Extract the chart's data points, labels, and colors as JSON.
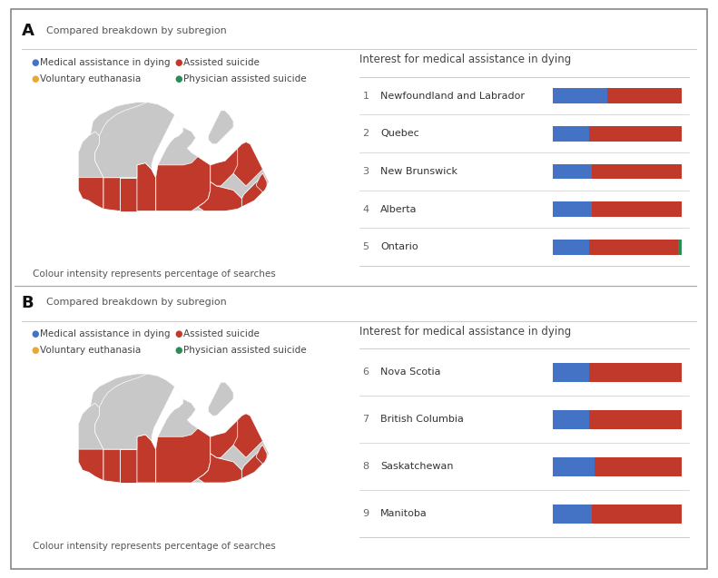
{
  "panel_A_label": "A",
  "panel_B_label": "B",
  "subregion_text": "Compared breakdown by subregion",
  "legend_items": [
    {
      "label": "Medical assistance in dying",
      "color": "#4472C4"
    },
    {
      "label": "Assisted suicide",
      "color": "#C0392B"
    },
    {
      "label": "Voluntary euthanasia",
      "color": "#E8A838"
    },
    {
      "label": "Physician assisted suicide",
      "color": "#2E8B57"
    }
  ],
  "interest_title": "Interest for medical assistance in dying",
  "colour_note": "Colour intensity represents percentage of searches",
  "panel_A_bars": [
    {
      "rank": 1,
      "label": "Newfoundland and Labrador",
      "blue": 42,
      "red": 58,
      "green": 0
    },
    {
      "rank": 2,
      "label": "Quebec",
      "blue": 28,
      "red": 72,
      "green": 0
    },
    {
      "rank": 3,
      "label": "New Brunswick",
      "blue": 30,
      "red": 70,
      "green": 0
    },
    {
      "rank": 4,
      "label": "Alberta",
      "blue": 30,
      "red": 70,
      "green": 0
    },
    {
      "rank": 5,
      "label": "Ontario",
      "blue": 28,
      "red": 69,
      "green": 3
    }
  ],
  "panel_B_bars": [
    {
      "rank": 6,
      "label": "Nova Scotia",
      "blue": 28,
      "red": 72,
      "green": 0
    },
    {
      "rank": 7,
      "label": "British Columbia",
      "blue": 28,
      "red": 72,
      "green": 0
    },
    {
      "rank": 8,
      "label": "Saskatchewan",
      "blue": 32,
      "red": 68,
      "green": 0
    },
    {
      "rank": 9,
      "label": "Manitoba",
      "blue": 30,
      "red": 70,
      "green": 0
    }
  ],
  "blue_color": "#4472C4",
  "red_color": "#C0392B",
  "green_color": "#2E8B57",
  "bg_color": "#FFFFFF",
  "map_red": "#C0392B",
  "map_gray": "#C8C8C8",
  "divider_color": "#CCCCCC",
  "border_color": "#AAAAAA"
}
